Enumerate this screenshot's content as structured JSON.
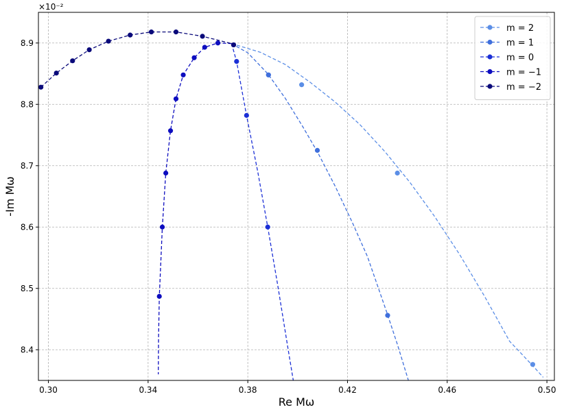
{
  "chart_data": {
    "type": "scatter",
    "title": "",
    "xlabel": "Re Mω",
    "ylabel": "-Im Mω",
    "y_offset_text": "×10⁻²",
    "xlim": [
      0.296,
      0.503
    ],
    "ylim": [
      8.35,
      8.95
    ],
    "xticks": [
      0.3,
      0.34,
      0.38,
      0.42,
      0.46,
      0.5
    ],
    "xtick_labels": [
      "0.30",
      "0.34",
      "0.38",
      "0.42",
      "0.46",
      "0.50"
    ],
    "yticks": [
      8.4,
      8.5,
      8.6,
      8.7,
      8.8,
      8.9
    ],
    "ytick_labels": [
      "8.4",
      "8.5",
      "8.6",
      "8.7",
      "8.8",
      "8.9"
    ],
    "grid": true,
    "legend_position": "top-right",
    "series": [
      {
        "name": "m = 2",
        "color": "#5b8ee6",
        "points": [
          [
            0.3883,
            8.848
          ],
          [
            0.4016,
            8.832
          ],
          [
            0.44,
            8.688
          ],
          [
            0.4943,
            8.376
          ]
        ],
        "curve": [
          [
            0.3735,
            8.899
          ],
          [
            0.385,
            8.885
          ],
          [
            0.395,
            8.865
          ],
          [
            0.405,
            8.836
          ],
          [
            0.415,
            8.804
          ],
          [
            0.425,
            8.767
          ],
          [
            0.435,
            8.723
          ],
          [
            0.445,
            8.673
          ],
          [
            0.455,
            8.617
          ],
          [
            0.465,
            8.555
          ],
          [
            0.475,
            8.487
          ],
          [
            0.485,
            8.414
          ],
          [
            0.495,
            8.371
          ],
          [
            0.4985,
            8.355
          ]
        ]
      },
      {
        "name": "m = 1",
        "color": "#3f6fdc",
        "points": [
          [
            0.3883,
            8.848
          ],
          [
            0.4079,
            8.725
          ],
          [
            0.4361,
            8.456
          ]
        ],
        "curve": [
          [
            0.3735,
            8.899
          ],
          [
            0.38,
            8.884
          ],
          [
            0.388,
            8.85
          ],
          [
            0.395,
            8.81
          ],
          [
            0.402,
            8.764
          ],
          [
            0.408,
            8.722
          ],
          [
            0.415,
            8.667
          ],
          [
            0.422,
            8.607
          ],
          [
            0.428,
            8.552
          ],
          [
            0.436,
            8.458
          ],
          [
            0.44,
            8.409
          ],
          [
            0.4445,
            8.349
          ]
        ]
      },
      {
        "name": "m = 0",
        "color": "#1b2fd6",
        "points": [
          [
            0.3743,
            8.897
          ],
          [
            0.3755,
            8.87
          ],
          [
            0.3795,
            8.782
          ],
          [
            0.388,
            8.6
          ]
        ],
        "curve": [
          [
            0.3735,
            8.899
          ],
          [
            0.3755,
            8.87
          ],
          [
            0.3795,
            8.782
          ],
          [
            0.384,
            8.69
          ],
          [
            0.388,
            8.6
          ],
          [
            0.392,
            8.505
          ],
          [
            0.396,
            8.405
          ],
          [
            0.3983,
            8.349
          ]
        ]
      },
      {
        "name": "m = −1",
        "color": "#0d0dbf",
        "points": [
          [
            0.368,
            8.9
          ],
          [
            0.3627,
            8.893
          ],
          [
            0.3585,
            8.876
          ],
          [
            0.3541,
            8.848
          ],
          [
            0.3512,
            8.809
          ],
          [
            0.349,
            8.757
          ],
          [
            0.3471,
            8.688
          ],
          [
            0.3457,
            8.6
          ],
          [
            0.3445,
            8.487
          ]
        ],
        "curve": [
          [
            0.3735,
            8.899
          ],
          [
            0.368,
            8.9
          ],
          [
            0.3627,
            8.893
          ],
          [
            0.3585,
            8.876
          ],
          [
            0.3541,
            8.848
          ],
          [
            0.3512,
            8.809
          ],
          [
            0.349,
            8.757
          ],
          [
            0.3471,
            8.688
          ],
          [
            0.3457,
            8.6
          ],
          [
            0.3445,
            8.487
          ],
          [
            0.3442,
            8.42
          ],
          [
            0.3441,
            8.36
          ]
        ]
      },
      {
        "name": "m = −2",
        "color": "#0a0a7a",
        "points": [
          [
            0.297,
            8.828
          ],
          [
            0.3032,
            8.851
          ],
          [
            0.3097,
            8.871
          ],
          [
            0.3164,
            8.889
          ],
          [
            0.3241,
            8.903
          ],
          [
            0.3328,
            8.913
          ],
          [
            0.3413,
            8.918
          ],
          [
            0.3512,
            8.918
          ],
          [
            0.3618,
            8.911
          ],
          [
            0.3743,
            8.897
          ]
        ],
        "curve": [
          [
            0.297,
            8.828
          ],
          [
            0.3032,
            8.851
          ],
          [
            0.3097,
            8.871
          ],
          [
            0.3164,
            8.889
          ],
          [
            0.3241,
            8.903
          ],
          [
            0.3328,
            8.913
          ],
          [
            0.3413,
            8.918
          ],
          [
            0.3512,
            8.918
          ],
          [
            0.3618,
            8.911
          ],
          [
            0.3735,
            8.899
          ]
        ]
      }
    ]
  }
}
